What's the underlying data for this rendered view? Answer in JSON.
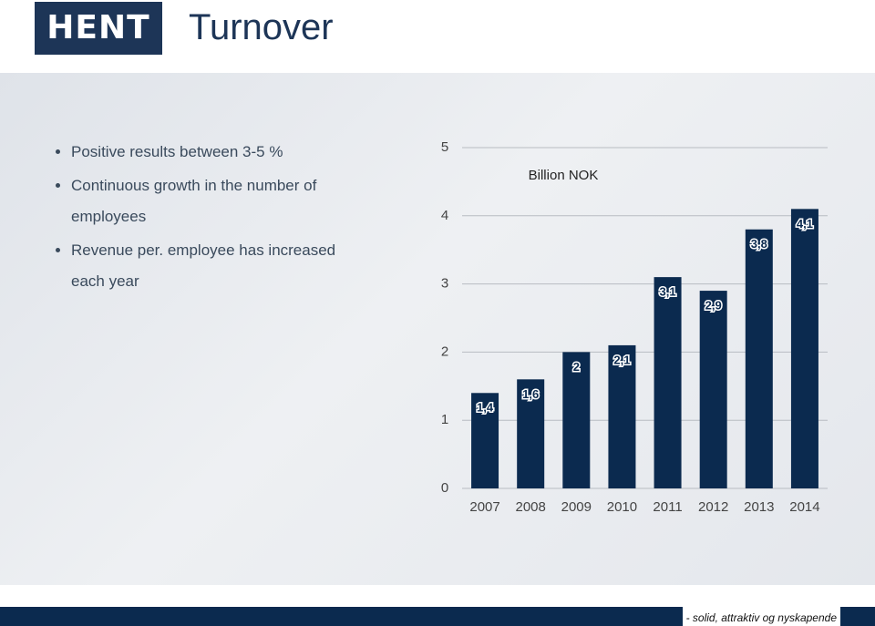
{
  "header": {
    "logo": "HENT",
    "title": "Turnover"
  },
  "bullets": [
    "Positive results between 3-5 %",
    "Continuous growth in the number of employees",
    "Revenue per. employee has increased each year"
  ],
  "footer": "- solid, attraktiv og nyskapende",
  "chart_data": {
    "type": "bar",
    "subtitle": "Billion NOK",
    "categories": [
      "2007",
      "2008",
      "2009",
      "2010",
      "2011",
      "2012",
      "2013",
      "2014"
    ],
    "values": [
      1.4,
      1.6,
      2,
      2.1,
      3.1,
      2.9,
      3.8,
      4.1
    ],
    "value_labels": [
      "1,4",
      "1,6",
      "2",
      "2,1",
      "3,1",
      "2,9",
      "3,8",
      "4,1"
    ],
    "color": "#0b2a4f",
    "ylim": [
      0,
      5
    ],
    "yticks": [
      0,
      1,
      2,
      3,
      4,
      5
    ],
    "grid": true
  }
}
